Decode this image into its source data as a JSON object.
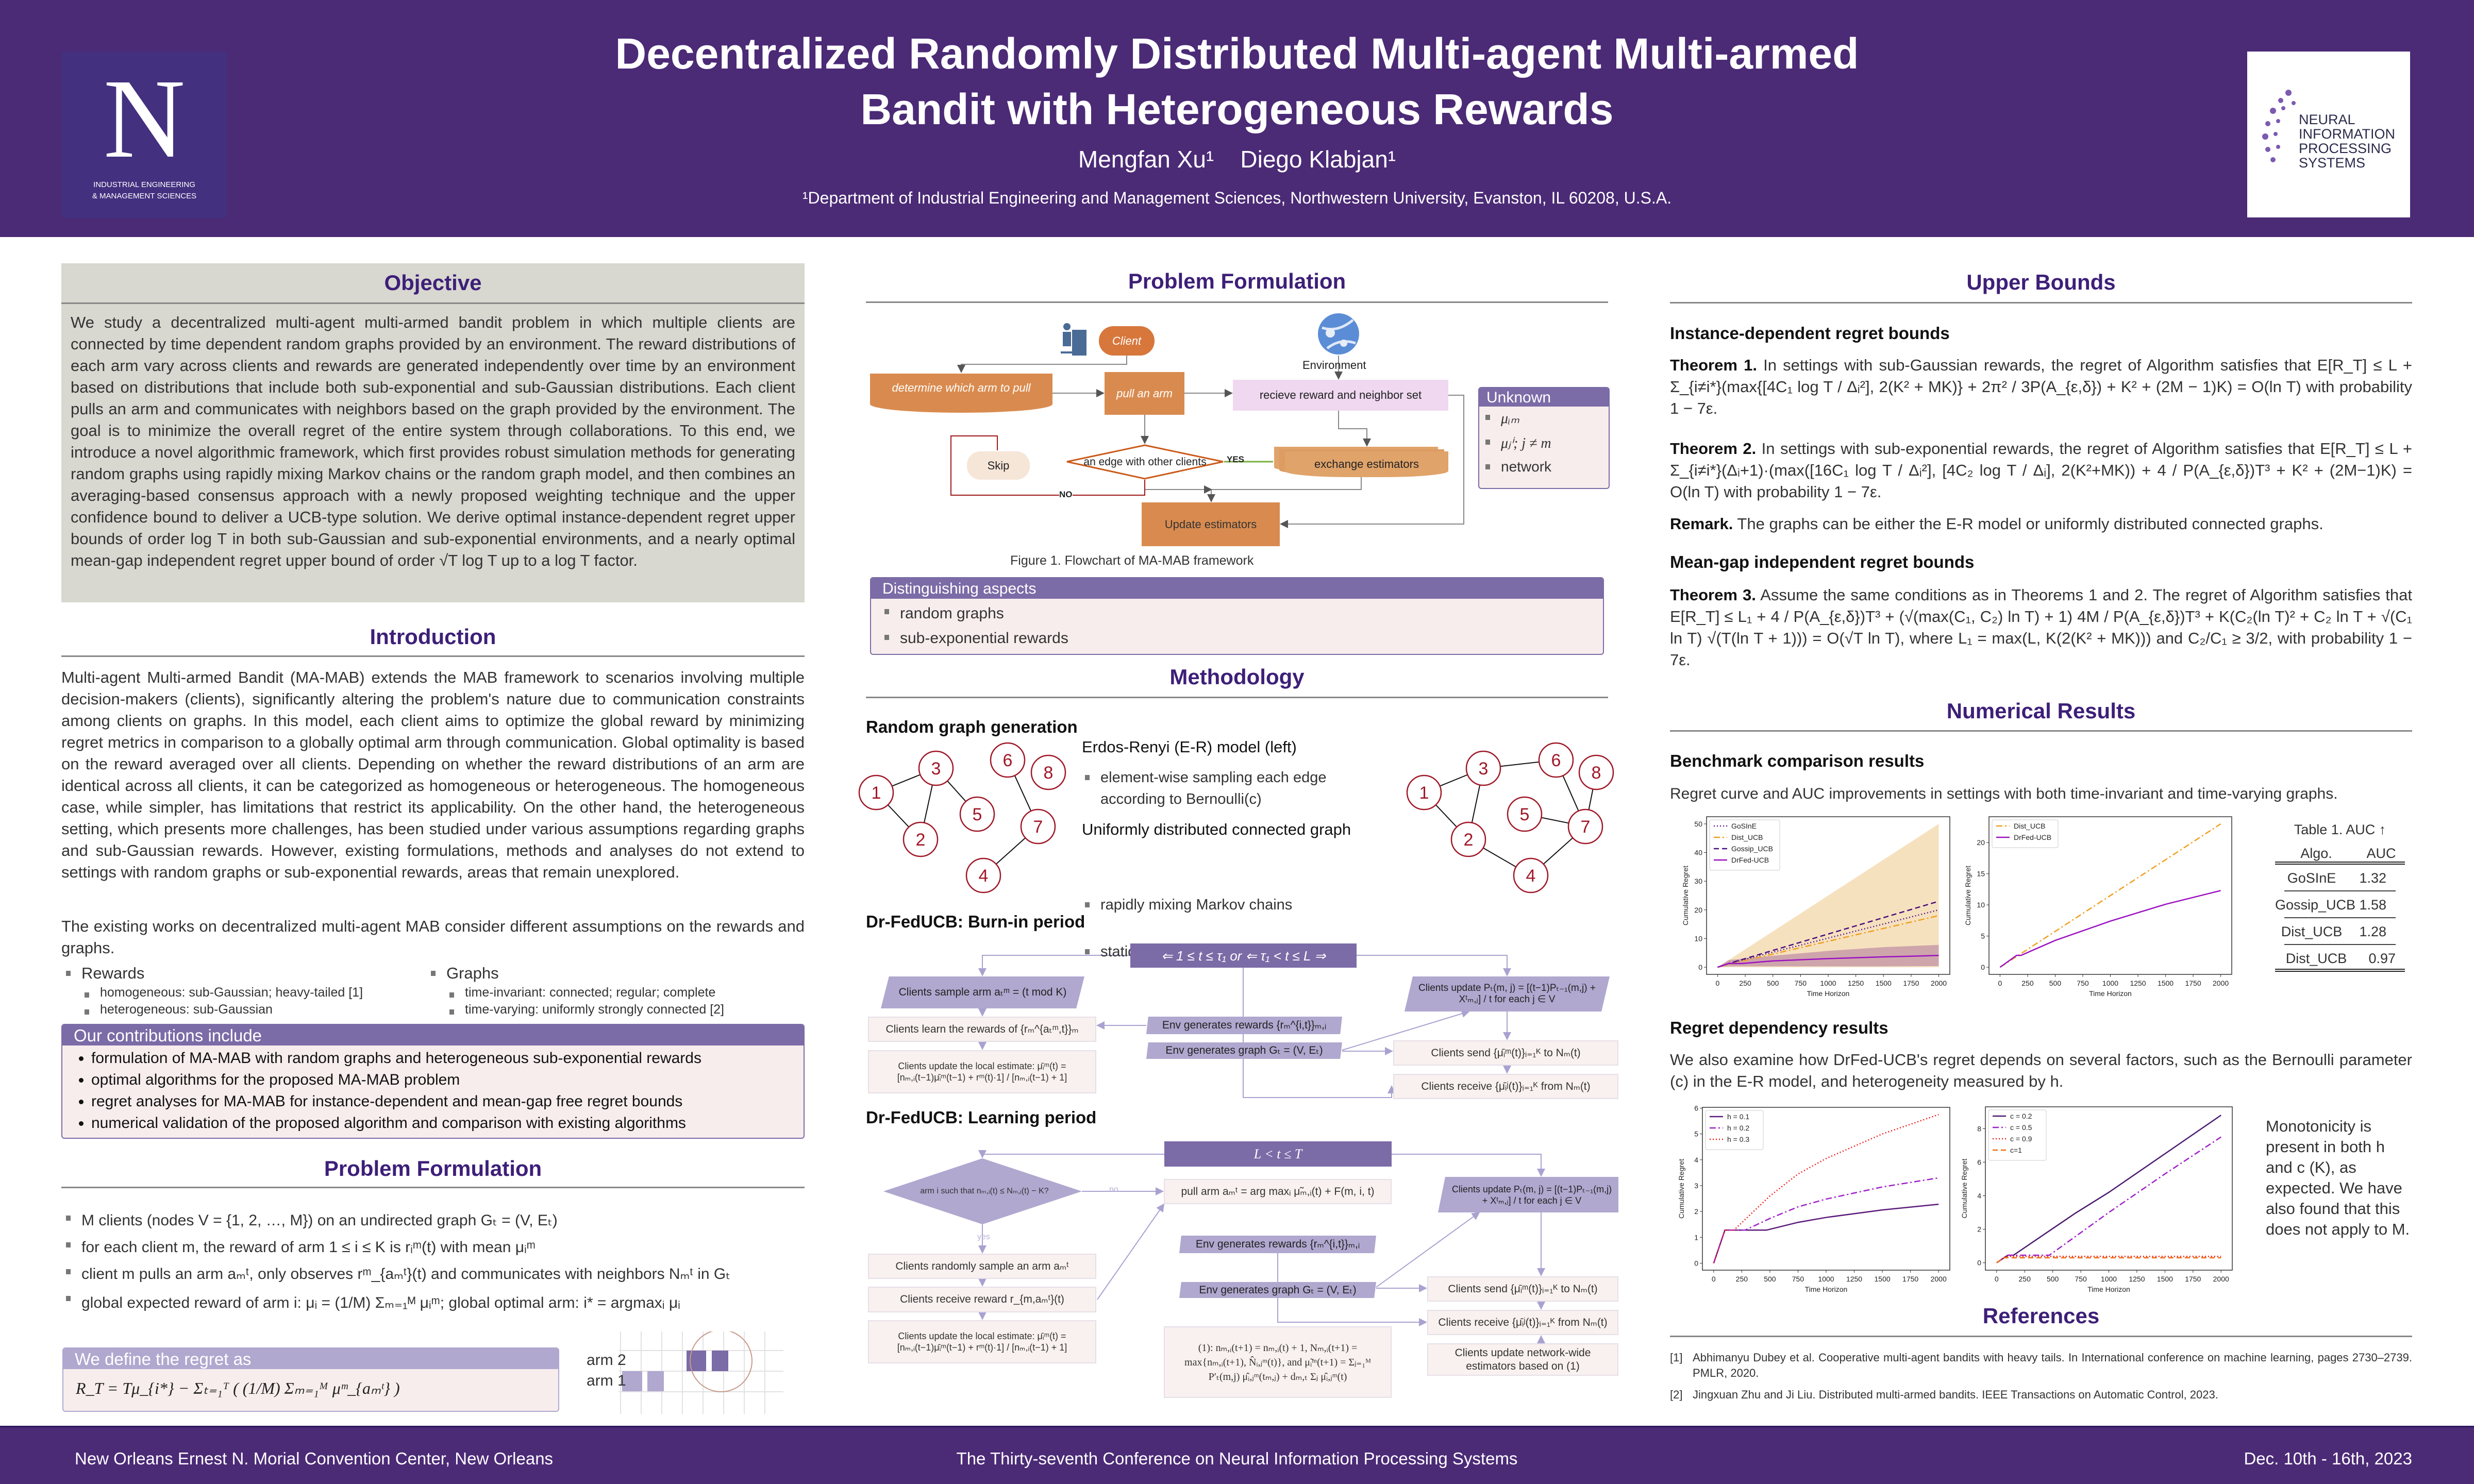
{
  "header": {
    "title_line1": "Decentralized Randomly Distributed Multi-agent Multi-armed",
    "title_line2": "Bandit with Heterogeneous Rewards",
    "authors": "Mengfan Xu¹    Diego Klabjan¹",
    "affiliation": "¹Department of Industrial Engineering and Management Sciences, Northwestern University, Evanston, IL 60208, U.S.A.",
    "left_logo": {
      "letter": "N",
      "line1": "INDUSTRIAL ENGINEERING",
      "line2": "& MANAGEMENT SCIENCES"
    },
    "right_logo": {
      "line1": "NEURAL",
      "line2": "INFORMATION",
      "line3": "PROCESSING",
      "line4": "SYSTEMS"
    }
  },
  "objective": {
    "heading": "Objective",
    "text": "We study a decentralized multi-agent multi-armed bandit problem in which multiple clients are connected by time dependent random graphs provided by an environment. The reward distributions of each arm vary across clients and rewards are generated independently over time by an environment based on distributions that include both sub-exponential and sub-Gaussian distributions. Each client pulls an arm and communicates with neighbors based on the graph provided by the environment. The goal is to minimize the overall regret of the entire system through collaborations. To this end, we introduce a novel algorithmic framework, which first provides robust simulation methods for generating random graphs using rapidly mixing Markov chains or the random graph model, and then combines an averaging-based consensus approach with a newly proposed weighting technique and the upper confidence bound to deliver a UCB-type solution. We derive optimal instance-dependent regret upper bounds of order log T in both sub-Gaussian and sub-exponential environments, and a nearly optimal mean-gap independent regret upper bound of order √T log T up to a log T factor."
  },
  "introduction": {
    "heading": "Introduction",
    "para1": "Multi-agent Multi-armed Bandit (MA-MAB) extends the MAB framework to scenarios involving multiple decision-makers (clients), significantly altering the problem's nature due to communication constraints among clients on graphs. In this model, each client aims to optimize the global reward by minimizing regret metrics in comparison to a globally optimal arm through communication. Global optimality is based on the reward averaged over all clients. Depending on whether the reward distributions of an arm are identical across all clients, it can be categorized as homogeneous or heterogeneous. The homogeneous case, while simpler, has limitations that restrict its applicability. On the other hand, the heterogeneous setting, which presents more challenges, has been studied under various assumptions regarding graphs and sub-Gaussian rewards. However, existing formulations, methods and analyses do not extend to settings with random graphs or sub-exponential rewards, areas that remain unexplored.",
    "para2": "The existing works on decentralized multi-agent MAB consider different assumptions on the rewards and graphs.",
    "rewards": {
      "label": "Rewards",
      "items": [
        "homogeneous: sub-Gaussian; heavy-tailed [1]",
        "heterogeneous: sub-Gaussian"
      ]
    },
    "graphs": {
      "label": "Graphs",
      "items": [
        "time-invariant: connected; regular; complete",
        "time-varying: uniformly strongly connected [2]"
      ]
    },
    "contributions": {
      "title": "Our contributions include",
      "items": [
        "formulation of MA-MAB with random graphs and heterogeneous sub-exponential rewards",
        "optimal algorithms for the proposed MA-MAB problem",
        "regret analyses for MA-MAB for instance-dependent and mean-gap free regret bounds",
        "numerical validation of the proposed algorithm and comparison with existing algorithms"
      ]
    }
  },
  "problem_left": {
    "heading": "Problem Formulation",
    "bullets": [
      "M clients (nodes V = {1, 2, …, M}) on an undirected graph Gₜ = (V, Eₜ)",
      "for each client m, the reward of arm 1 ≤ i ≤ K is rᵢᵐ(t) with mean μᵢᵐ",
      "client m pulls an arm aₘᵗ, only observes rᵐ_{aₘᵗ}(t) and communicates with neighbors Nₘᵗ in Gₜ",
      "global expected reward of arm i: μᵢ = (1/M) Σₘ₌₁ᴹ μᵢᵐ; global optimal arm: i* = argmaxᵢ μᵢ"
    ],
    "regret_title": "We define the regret as",
    "regret_formula": "R_T = Tμ_{i*} − Σₜ₌₁ᵀ ( (1/M) Σₘ₌₁ᴹ μᵐ_{aₘᵗ} )",
    "arm2": "arm 2",
    "arm1": "arm 1"
  },
  "problem_mid": {
    "heading": "Problem Formulation",
    "client": "Client",
    "environment": "Environment",
    "determine": "determine which arm to pull",
    "pull": "pull an arm",
    "receive": "recieve reward and neighbor set",
    "skip": "Skip",
    "edge": "an edge with other clients",
    "yes": "YES",
    "no": "NO",
    "exchange": "exchange estimators",
    "update": "Update estimators",
    "unknown_title": "Unknown",
    "unknown_items": [
      "μᵢₘ",
      "μⱼⁱ; j ≠ m",
      "network"
    ],
    "caption": "Figure 1. Flowchart of MA-MAB framework",
    "distinguishing": {
      "title": "Distinguishing aspects",
      "items": [
        "random graphs",
        "sub-exponential rewards"
      ]
    }
  },
  "methodology": {
    "heading": "Methodology",
    "random_graph_title": "Random graph generation",
    "er_title": "Erdos-Renyi (E-R) model (left)",
    "er_items": [
      "element-wise sampling each edge according to Bernoulli(c)"
    ],
    "uniform_title": "Uniformly distributed connected graph",
    "uniform_items": [
      "rapidly mixing Markov chains",
      "stationary distribution"
    ],
    "node_labels": [
      "1",
      "2",
      "3",
      "4",
      "5",
      "6",
      "7",
      "8"
    ],
    "burnin": {
      "title": "Dr-FedUCB: Burn-in period",
      "top": "⇐ 1 ≤ t ≤ τ₁ or ⇐ τ₁ < t ≤ L ⇒",
      "sample": "Clients sample arm aₜᵐ = (t mod K)",
      "learn": "Clients learn the rewards of {rₘ^{aₜᵐ,t}}ₘ",
      "local": "Clients update the local estimate: μ̄ᵢᵐ(t) = [nₘ,ᵢ(t−1)μ̄ᵢᵐ(t−1) + rᵐ(t)·1] / [nₘ,ᵢ(t−1) + 1]",
      "env_rewards": "Env generates rewards {rₘ^{i,t}}ₘ,ᵢ",
      "env_graph": "Env generates graph Gₜ = (V, Eₜ)",
      "update_p": "Clients update Pₜ(m, j) = [(t−1)Pₜ₋₁(m,j) + Xᵗₘ,ⱼ] / t for each j ∈ V",
      "send": "Clients send {μ̄ᵢᵐ(t)}ᵢ₌₁ᴷ to Nₘ(t)",
      "receive": "Clients receive {μ̄ᵢʲ(t)}ᵢ₌₁ᴷ from Nₘ(t)"
    },
    "learning": {
      "title": "Dr-FedUCB: Learning period",
      "top": "L < t ≤ T",
      "diamond": "arm i such that nₘ,ᵢ(t) ≤ Nₘ,ᵢ(t) − K?",
      "no": "no",
      "yes": "yes",
      "pull": "pull arm aₘᵗ = arg maxᵢ μ̃ₘ,ᵢ(t) + F(m, i, t)",
      "update_p": "Clients update Pₜ(m, j) = [(t−1)Pₜ₋₁(m,j) + Xᵗₘ,ⱼ] / t for each j ∈ V",
      "env_rewards": "Env generates rewards {rₘ^{i,t}}ₘ,ᵢ",
      "env_graph": "Env generates graph Gₜ = (V, Eₜ)",
      "sample": "Clients randomly sample an arm aₘᵗ",
      "receive_reward": "Clients receive reward r_{m,aₘᵗ}(t)",
      "local": "Clients update the local estimate: μ̄ᵢᵐ(t) = [nₘ,ᵢ(t−1)μ̄ᵢᵐ(t−1) + rᵐ(t)·1] / [nₘ,ᵢ(t−1) + 1]",
      "eq1": "(1): nₘ,ᵢ(t+1) = nₘ,ᵢ(t) + 1, Nₘ,ᵢ(t+1) = max{nₘ,ᵢ(t+1), N̂ᵢ,ⱼᵐ(t)}, and μ̃ᵢᵐ(t+1) = Σⱼ₌₁ᴹ P′ₜ(m,j) μ̂ᵢ,ⱼᵐ(tₘ,ⱼ) + dₘ,ₜ Σⱼ μ̂ᵢ,ⱼᵐ(t)",
      "send": "Clients send {μ̄ᵢᵐ(t)}ᵢ₌₁ᴷ to Nₘ(t)",
      "receive": "Clients receive {μ̄ᵢʲ(t)}ᵢ₌₁ᴷ from Nₘ(t)",
      "network": "Clients update network-wide estimators based on (1)"
    }
  },
  "upper_bounds": {
    "heading": "Upper Bounds",
    "instance_title": "Instance-dependent regret bounds",
    "t1_label": "Theorem 1.",
    "t1_text": "In settings with sub-Gaussian rewards, the regret of Algorithm satisfies that E[R_T] ≤ L + Σ_{i≠i*}(max{[4C₁ log T / Δᵢ²], 2(K² + MK)} + 2π² / 3P(A_{ε,δ}) + K² + (2M − 1)K) = O(ln T) with probability 1 − 7ε.",
    "t2_label": "Theorem 2.",
    "t2_text": "In settings with sub-exponential rewards, the regret of Algorithm satisfies that E[R_T] ≤ L + Σ_{i≠i*}(Δᵢ+1)·(max([16C₁ log T / Δᵢ²], [4C₂ log T / Δᵢ], 2(K²+MK)) + 4 / P(A_{ε,δ})T³ + K² + (2M−1)K) = O(ln T) with probability 1 − 7ε.",
    "remark_label": "Remark.",
    "remark_text": "The graphs can be either the E-R model or uniformly distributed connected graphs.",
    "meangap_title": "Mean-gap independent regret bounds",
    "t3_label": "Theorem 3.",
    "t3_text": "Assume the same conditions as in Theorems 1 and 2. The regret of Algorithm satisfies that E[R_T] ≤ L₁ + 4 / P(A_{ε,δ})T³ + (√(max(C₁, C₂) ln T) + 1) 4M / P(A_{ε,δ})T³ + K(C₂(ln T)² + C₂ ln T + √(C₁ ln T) √(T(ln T + 1))) = O(√T ln T), where L₁ = max(L, K(2(K² + MK))) and C₂/C₁ ≥ 3/2, with probability 1 − 7ε."
  },
  "numerical": {
    "heading": "Numerical Results",
    "benchmark_title": "Benchmark comparison results",
    "benchmark_text": "Regret curve and AUC improvements in settings with both time-invariant and time-varying graphs.",
    "table": {
      "caption": "Table 1. AUC ↑",
      "headers": [
        "Algo.",
        "AUC"
      ],
      "rows": [
        [
          "GoSInE",
          "1.32"
        ],
        [
          "Gossip_UCB",
          "1.58"
        ],
        [
          "Dist_UCB",
          "1.28"
        ],
        [
          "Dist_UCB",
          "0.97"
        ]
      ]
    },
    "dependency_title": "Regret dependency results",
    "dependency_text": "We also examine how DrFed-UCB's regret depends on several factors, such as the Bernoulli parameter (c) in the E-R model, and heterogeneity measured by h.",
    "monotonicity_text": "Monotonicity is present in both h and c (K), as expected. We have also found that this does not apply to M."
  },
  "references": {
    "heading": "References",
    "items": [
      {
        "num": "[1]",
        "text": "Abhimanyu Dubey et al. Cooperative multi-agent bandits with heavy tails. In International conference on machine learning, pages 2730–2739. PMLR, 2020."
      },
      {
        "num": "[2]",
        "text": "Jingxuan Zhu and Ji Liu. Distributed multi-armed bandits. IEEE Transactions on Automatic Control, 2023."
      }
    ]
  },
  "footer": {
    "venue": "New Orleans Ernest N. Morial Convention Center, New Orleans",
    "conference": "The Thirty-seventh Conference on Neural Information Processing Systems",
    "dates": "Dec. 10th - 16th, 2023"
  },
  "colors": {
    "purple": "#4b2a76",
    "heading": "#3d1f78",
    "block": "#7b6ba6",
    "orange": "#d98b4f"
  },
  "chart_data": [
    {
      "id": "bench1",
      "type": "line",
      "title": "",
      "xlabel": "Time Horizon",
      "ylabel": "Cumulative Regret",
      "xlim": [
        -100,
        2100
      ],
      "ylim": [
        -2.5,
        52.5
      ],
      "xticks": [
        0,
        250,
        500,
        750,
        1000,
        1250,
        1500,
        1750,
        2000
      ],
      "yticks": [
        0,
        10,
        20,
        30,
        40,
        50
      ],
      "legend": "top-left",
      "bands": [
        {
          "color": "#f5dcb4",
          "x": [
            0,
            100,
            2000
          ],
          "lower": [
            0,
            0,
            0
          ],
          "upper": [
            0,
            2.5,
            50
          ]
        },
        {
          "color": "#c89aa8",
          "x": [
            0,
            100,
            500,
            1000,
            1500,
            2000
          ],
          "lower": [
            0,
            0.3,
            0.3,
            0.3,
            0.3,
            0.4
          ],
          "upper": [
            0,
            2.5,
            4,
            5.7,
            7,
            7.8
          ]
        }
      ],
      "series": [
        {
          "name": "GoSInE",
          "color": "#5a1a8a",
          "style": "dotted",
          "x": [
            0,
            100,
            2000
          ],
          "y": [
            0,
            1.3,
            20
          ]
        },
        {
          "name": "Dist_UCB",
          "color": "#f0a020",
          "style": "dashdot",
          "x": [
            0,
            100,
            2000
          ],
          "y": [
            0,
            1.0,
            18
          ]
        },
        {
          "name": "Gossip_UCB",
          "color": "#4b0f7a",
          "style": "dashed",
          "x": [
            0,
            100,
            2000
          ],
          "y": [
            0,
            1.3,
            23
          ]
        },
        {
          "name": "DrFed-UCB",
          "color": "#9b10c0",
          "style": "solid",
          "x": [
            0,
            100,
            220,
            500,
            1000,
            1500,
            2000
          ],
          "y": [
            0,
            1.3,
            1.3,
            2.2,
            3.0,
            3.6,
            4.1
          ]
        }
      ]
    },
    {
      "id": "bench2",
      "type": "line",
      "title": "",
      "xlabel": "Time Horizon",
      "ylabel": "Cumulative Regret",
      "xlim": [
        -100,
        2100
      ],
      "ylim": [
        -1.15,
        24.15
      ],
      "xticks": [
        0,
        250,
        500,
        750,
        1000,
        1250,
        1500,
        1750,
        2000
      ],
      "yticks": [
        0,
        5,
        10,
        15,
        20
      ],
      "legend": "top-left",
      "series": [
        {
          "name": "Dist_UCB",
          "color": "#f0a020",
          "style": "dashdot",
          "x": [
            0,
            2000
          ],
          "y": [
            0,
            23
          ]
        },
        {
          "name": "DrFed-UCB",
          "color": "#9b10c0",
          "style": "solid",
          "x": [
            0,
            150,
            190,
            500,
            1000,
            1500,
            2000
          ],
          "y": [
            0,
            1.9,
            1.9,
            4.3,
            7.4,
            10.1,
            12.3
          ]
        }
      ]
    },
    {
      "id": "dep_h",
      "type": "line",
      "title": "",
      "xlabel": "Time Horizon",
      "ylabel": "Cumulative Regret",
      "xlim": [
        -100,
        2100
      ],
      "ylim": [
        -0.27,
        6.03
      ],
      "xticks": [
        0,
        250,
        500,
        750,
        1000,
        1250,
        1500,
        1750,
        2000
      ],
      "yticks": [
        0,
        1,
        2,
        3,
        4,
        5,
        6
      ],
      "legend": "top-left",
      "series": [
        {
          "name": "h = 0.1",
          "color": "#5b1a7a",
          "style": "solid",
          "x": [
            0,
            100,
            470,
            750,
            1000,
            1500,
            2000
          ],
          "y": [
            0,
            1.28,
            1.28,
            1.58,
            1.77,
            2.06,
            2.28
          ]
        },
        {
          "name": "h = 0.2",
          "color": "#a020c8",
          "style": "dashdot",
          "x": [
            0,
            100,
            280,
            500,
            750,
            1000,
            1500,
            2000
          ],
          "y": [
            0,
            1.28,
            1.28,
            1.73,
            2.18,
            2.48,
            2.95,
            3.3
          ]
        },
        {
          "name": "h = 0.3",
          "color": "#ee1111",
          "style": "dotted",
          "x": [
            0,
            100,
            180,
            500,
            750,
            1000,
            1500,
            2000
          ],
          "y": [
            0,
            1.28,
            1.28,
            2.6,
            3.45,
            4.05,
            5.0,
            5.75
          ]
        }
      ]
    },
    {
      "id": "dep_c",
      "type": "line",
      "title": "",
      "xlabel": "Time Horizon",
      "ylabel": "Cumulative Regret",
      "xlim": [
        -100,
        2100
      ],
      "ylim": [
        -0.44,
        9.3
      ],
      "xticks": [
        0,
        250,
        500,
        750,
        1000,
        1250,
        1500,
        1750,
        2000
      ],
      "yticks": [
        0,
        2,
        4,
        6,
        8
      ],
      "legend": "top-left",
      "series": [
        {
          "name": "c = 0.2",
          "color": "#4b1a6e",
          "style": "solid",
          "x": [
            0,
            100,
            150,
            700,
            1000,
            1500,
            2000
          ],
          "y": [
            0,
            0.45,
            0.45,
            2.95,
            4.2,
            6.5,
            8.8
          ]
        },
        {
          "name": "c = 0.5",
          "color": "#a020c8",
          "style": "dashdot",
          "x": [
            0,
            100,
            470,
            1000,
            1500,
            2000
          ],
          "y": [
            0,
            0.45,
            0.45,
            3.0,
            5.3,
            7.5
          ]
        },
        {
          "name": "c = 0.9",
          "color": "#ee1111",
          "style": "dotted",
          "x": [
            0,
            80,
            2000
          ],
          "y": [
            0,
            0.38,
            0.38
          ]
        },
        {
          "name": "c=1",
          "color": "#f07010",
          "style": "dashed",
          "x": [
            0,
            70,
            2000
          ],
          "y": [
            0,
            0.3,
            0.3
          ]
        }
      ]
    }
  ]
}
